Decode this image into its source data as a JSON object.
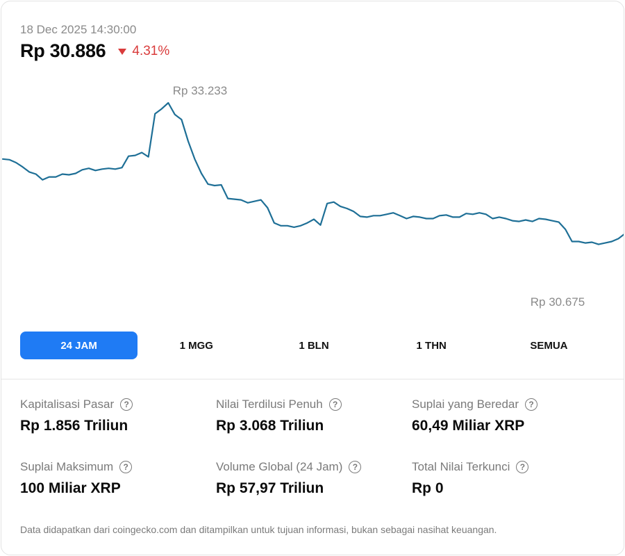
{
  "header": {
    "timestamp": "18 Dec 2025 14:30:00",
    "price": "Rp 30.886",
    "change": "4.31%",
    "change_direction": "down",
    "change_color": "#d93b3b"
  },
  "chart_data": {
    "type": "line",
    "title": "",
    "xlabel": "",
    "ylabel": "",
    "line_color": "#1e6f96",
    "high_label": "Rp 33.233",
    "low_label": "Rp 30.675",
    "high_value": 33233,
    "low_value": 30675,
    "grid": false,
    "series": [
      {
        "name": "",
        "values": [
          32450,
          32440,
          32400,
          32340,
          32270,
          32240,
          32160,
          32200,
          32200,
          32240,
          32230,
          32250,
          32300,
          32320,
          32290,
          32310,
          32320,
          32310,
          32330,
          32490,
          32500,
          32540,
          32480,
          33080,
          33150,
          33233,
          33070,
          33000,
          32700,
          32450,
          32250,
          32100,
          32080,
          32090,
          31900,
          31890,
          31880,
          31840,
          31860,
          31880,
          31770,
          31560,
          31520,
          31520,
          31500,
          31520,
          31560,
          31610,
          31530,
          31830,
          31850,
          31790,
          31760,
          31720,
          31650,
          31640,
          31660,
          31660,
          31680,
          31700,
          31660,
          31620,
          31650,
          31640,
          31620,
          31620,
          31660,
          31670,
          31640,
          31640,
          31690,
          31680,
          31700,
          31680,
          31620,
          31640,
          31620,
          31590,
          31580,
          31600,
          31580,
          31620,
          31610,
          31590,
          31570,
          31470,
          31300,
          31300,
          31280,
          31290,
          31260,
          31280,
          31300,
          31340,
          31410
        ]
      }
    ]
  },
  "tabs": [
    {
      "label": "24 JAM",
      "active": true
    },
    {
      "label": "1 MGG",
      "active": false
    },
    {
      "label": "1 BLN",
      "active": false
    },
    {
      "label": "1 THN",
      "active": false
    },
    {
      "label": "SEMUA",
      "active": false
    }
  ],
  "stats": [
    {
      "label": "Kapitalisasi Pasar",
      "value": "Rp 1.856 Triliun"
    },
    {
      "label": "Nilai Terdilusi Penuh",
      "value": "Rp 3.068 Triliun"
    },
    {
      "label": "Suplai yang Beredar",
      "value": "60,49 Miliar XRP"
    },
    {
      "label": "Suplai Maksimum",
      "value": "100 Miliar XRP"
    },
    {
      "label": "Volume Global (24 Jam)",
      "value": "Rp 57,97 Triliun"
    },
    {
      "label": "Total Nilai Terkunci",
      "value": "Rp 0"
    }
  ],
  "info_icon": "question-circle-icon",
  "info_glyph": "?",
  "accent_color": "#1f7bf4",
  "footer": "Data didapatkan dari coingecko.com dan ditampilkan untuk tujuan informasi, bukan sebagai nasihat keuangan."
}
